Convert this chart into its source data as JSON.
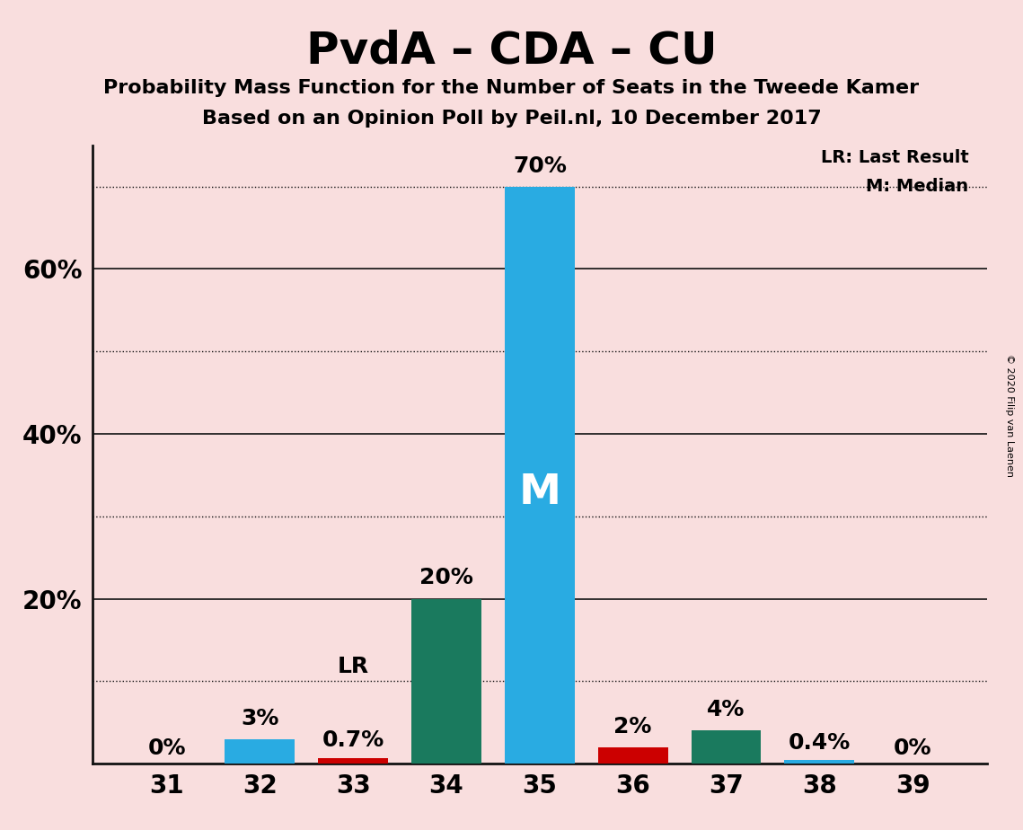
{
  "title": "PvdA – CDA – CU",
  "subtitle1": "Probability Mass Function for the Number of Seats in the Tweede Kamer",
  "subtitle2": "Based on an Opinion Poll by Peil.nl, 10 December 2017",
  "copyright": "© 2020 Filip van Laenen",
  "legend_lr": "LR: Last Result",
  "legend_m": "M: Median",
  "seats": [
    31,
    32,
    33,
    34,
    35,
    36,
    37,
    38,
    39
  ],
  "probabilities": [
    0.0,
    3.0,
    0.7,
    20.0,
    70.0,
    2.0,
    4.0,
    0.4,
    0.0
  ],
  "labels": [
    "0%",
    "3%",
    "0.7%",
    "20%",
    "70%",
    "2%",
    "4%",
    "0.4%",
    "0%"
  ],
  "bar_colors": [
    "#29ABE2",
    "#29ABE2",
    "#CC0000",
    "#1A7A5E",
    "#29ABE2",
    "#CC0000",
    "#1A7A5E",
    "#29ABE2",
    "#29ABE2"
  ],
  "median_seat": 35,
  "lr_seat": 33,
  "median_label": "M",
  "lr_label": "LR",
  "background_color": "#F9DEDE",
  "grid_color": "#111111",
  "solid_grid_vals": [
    20,
    40,
    60
  ],
  "dotted_grid_vals": [
    10,
    30,
    50,
    70
  ],
  "ytick_vals": [
    20,
    40,
    60
  ],
  "ytick_labels": [
    "20%",
    "40%",
    "60%"
  ],
  "ylim": [
    0,
    75
  ],
  "title_fontsize": 36,
  "subtitle_fontsize": 16,
  "label_fontsize": 18,
  "tick_fontsize": 20,
  "bar_width": 0.75
}
